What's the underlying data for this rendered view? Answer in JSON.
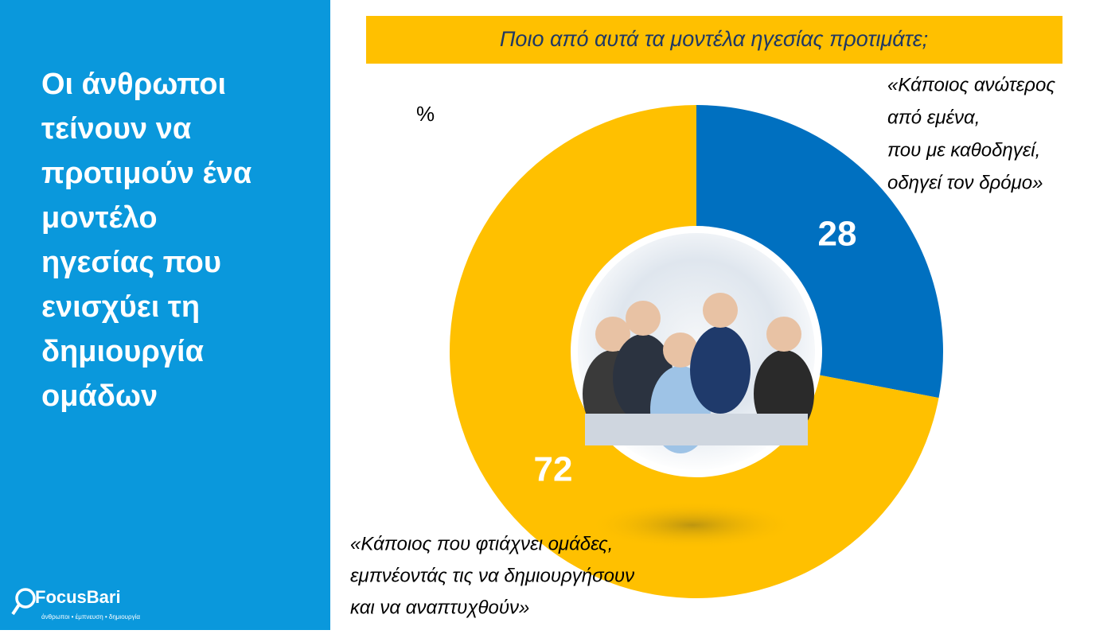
{
  "sidebar": {
    "headline_lines": [
      "Οι άνθρωποι",
      "τείνουν να",
      "προτιμούν ένα",
      "μοντέλο",
      "ηγεσίας που",
      "ενισχύει τη",
      "δημιουργία",
      "ομάδων"
    ],
    "logo": "FocusBari",
    "tagline": "άνθρωποι • έμπνευση • δημιουργία"
  },
  "chart_data": {
    "type": "donut",
    "title": "Ποιο από αυτά τα μοντέλα ηγεσίας προτιμάτε;",
    "unit_label": "%",
    "categories": [
      [
        "«Κάποιος ανώτερος",
        "από εμένα,",
        "που με καθοδηγεί,",
        "οδηγεί τον δρόμο»"
      ],
      [
        "«Κάποιος που φτιάχνει ομάδες,",
        "εμπνέοντάς τις να δημιουργήσουν",
        "και να αναπτυχθούν»"
      ]
    ],
    "values": [
      28,
      72
    ],
    "colors": [
      "#0070c0",
      "#ffc000"
    ]
  }
}
